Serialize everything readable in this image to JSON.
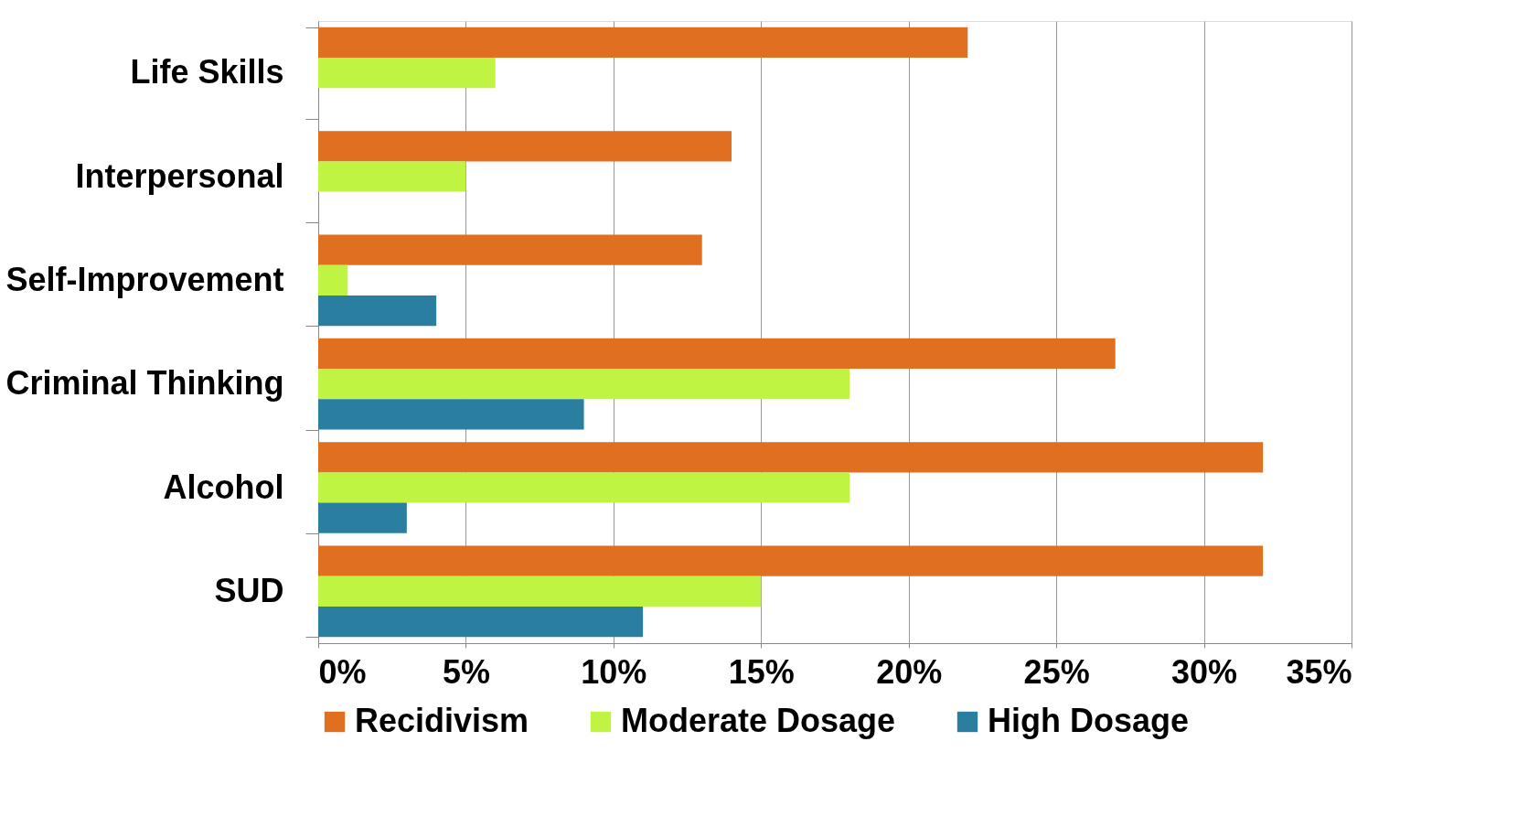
{
  "chart_data": {
    "type": "bar",
    "orientation": "horizontal",
    "categories": [
      "Life Skills",
      "Interpersonal",
      "Self-Improvement",
      "Criminal Thinking",
      "Alcohol",
      "SUD"
    ],
    "series": [
      {
        "name": "Recidivism",
        "color": "#e07020",
        "values": [
          22,
          14,
          13,
          27,
          32,
          32
        ]
      },
      {
        "name": "Moderate Dosage",
        "color": "#bff542",
        "values": [
          6,
          5,
          1,
          18,
          18,
          15
        ]
      },
      {
        "name": "High Dosage",
        "color": "#2a7fa0",
        "values": [
          null,
          null,
          4,
          9,
          3,
          11
        ]
      }
    ],
    "xlim": [
      0,
      35
    ],
    "xticks": [
      {
        "value": 0,
        "label": "0%"
      },
      {
        "value": 5,
        "label": "5%"
      },
      {
        "value": 10,
        "label": "10%"
      },
      {
        "value": 15,
        "label": "15%"
      },
      {
        "value": 20,
        "label": "20%"
      },
      {
        "value": 25,
        "label": "25%"
      },
      {
        "value": 30,
        "label": "30%"
      },
      {
        "value": 35,
        "label": "35%"
      }
    ],
    "grid": "x",
    "legend": "bottom"
  }
}
